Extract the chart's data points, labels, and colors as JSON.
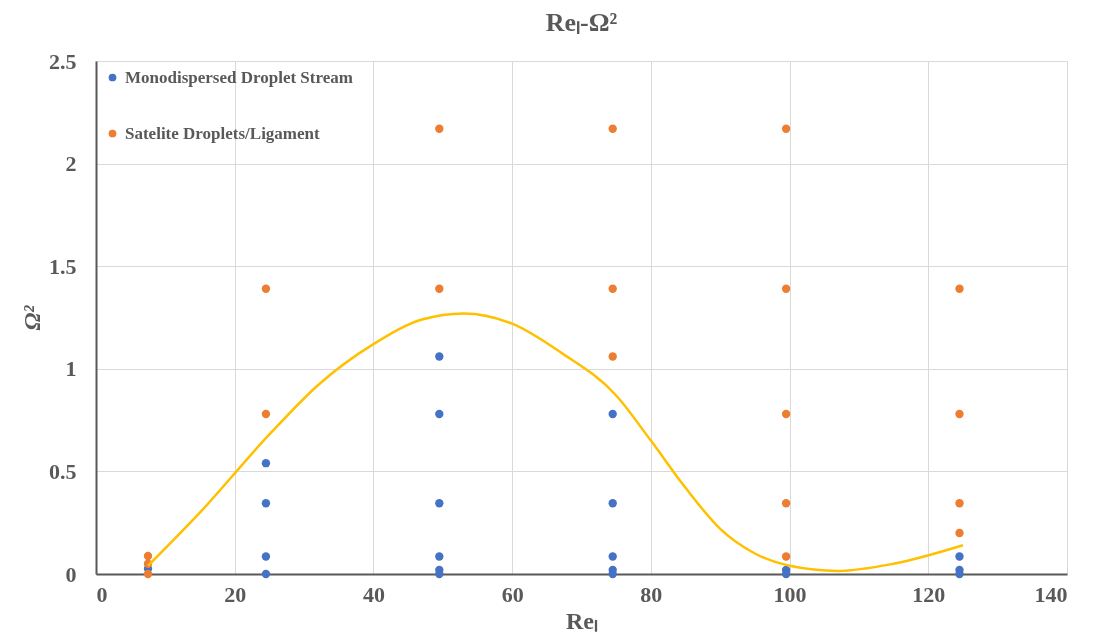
{
  "chart_data": {
    "type": "scatter",
    "title": "Reₗ-Ω²",
    "xlabel": "Reₗ",
    "ylabel": "Ω²",
    "xlim": [
      0,
      140
    ],
    "xticks": [
      0,
      20,
      40,
      60,
      80,
      100,
      120,
      140
    ],
    "ylim": [
      0,
      2.5
    ],
    "yticks": [
      0,
      0.5,
      1,
      1.5,
      2,
      2.5
    ],
    "grid": true,
    "legend": "top left",
    "marker": "circle",
    "series": [
      {
        "name": "Monodispersed Droplet Stream",
        "color": "#4472c4",
        "x": [
          7.5,
          24.5,
          24.5,
          24.5,
          24.5,
          49.5,
          49.5,
          49.5,
          49.5,
          49.5,
          49.5,
          74.5,
          74.5,
          74.5,
          74.5,
          74.5,
          99.5,
          99.5,
          124.5,
          124.5,
          124.5
        ],
        "values": [
          0.026,
          0.54,
          0.345,
          0.085,
          0,
          1.06,
          0.78,
          0.345,
          0.085,
          0.02,
          0,
          0.78,
          0.345,
          0.085,
          0.02,
          0,
          0.02,
          0,
          0.085,
          0.02,
          0
        ]
      },
      {
        "name": "Satelite Droplets/Ligament",
        "color": "#ed7d31",
        "x": [
          7.5,
          7.5,
          7.5,
          24.5,
          24.5,
          49.5,
          49.5,
          74.5,
          74.5,
          74.5,
          99.5,
          99.5,
          99.5,
          99.5,
          99.5,
          124.5,
          124.5,
          124.5,
          124.5
        ],
        "values": [
          0.088,
          0.05,
          0,
          0.78,
          1.39,
          1.39,
          2.17,
          1.06,
          1.39,
          2.17,
          0.085,
          0.345,
          0.78,
          1.39,
          2.17,
          0.2,
          0.345,
          0.78,
          1.39
        ]
      },
      {
        "color": "#ffc000",
        "type": "line",
        "line_style": "solid",
        "marker": "none",
        "x": [
          7.5,
          15,
          25,
          32,
          40,
          47,
          53,
          60,
          67,
          75,
          80,
          85,
          90,
          95,
          100,
          107,
          115,
          125
        ],
        "values": [
          0.04,
          0.3,
          0.68,
          0.92,
          1.12,
          1.24,
          1.27,
          1.22,
          1.08,
          0.87,
          0.65,
          0.42,
          0.22,
          0.1,
          0.04,
          0.015,
          0.05,
          0.14
        ]
      }
    ]
  }
}
